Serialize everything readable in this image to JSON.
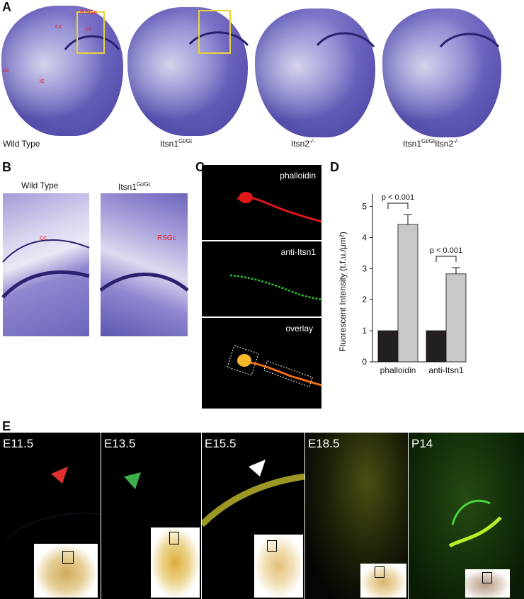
{
  "panels": {
    "a": "A",
    "b": "B",
    "c": "C",
    "d": "D",
    "e": "E"
  },
  "panelA": {
    "labels": [
      {
        "main": "Wild Type",
        "sup": "",
        "tail": ""
      },
      {
        "main": "Itsn1",
        "sup": "Gt/Gt",
        "tail": ""
      },
      {
        "main": "Itsn2",
        "sup": "-/-",
        "tail": ""
      },
      {
        "main": "Itsn1",
        "sup": "Gt/Gt",
        "tail": "Itsn2",
        "sup2": "-/-"
      }
    ],
    "annotations": {
      "rsgc": "RSGc",
      "cx": "cx",
      "cc": "cc",
      "ec": "ec",
      "ic": "ic"
    },
    "box_color": "#e8d23a"
  },
  "panelB": {
    "left_label": "Wild Type",
    "right_label_main": "Itsn1",
    "right_label_sup": "Gt/Gt",
    "cc": "cc",
    "rsgc": "RSGc"
  },
  "panelC": {
    "phalloidin": "phalloidin",
    "anti_itsn1": "anti-Itsn1",
    "overlay": "overlay"
  },
  "chart_data": {
    "type": "bar",
    "categories": [
      "phalloidin",
      "anti-Itsn1"
    ],
    "series": [
      {
        "values": [
          1,
          1
        ],
        "color": "#231f20"
      },
      {
        "values": [
          4.42,
          2.83
        ],
        "errors": [
          0.32,
          0.2
        ],
        "color": "#c8c8c8"
      }
    ],
    "ylabel": "Fluorescent Intensity (t.f.u./μm²)",
    "ylim": [
      0,
      5.4
    ],
    "yticks": [
      "0",
      "1",
      "2",
      "3",
      "4",
      "5"
    ],
    "annotations": [
      "p < 0.001",
      "p < 0.001"
    ],
    "grid": false
  },
  "panelE": {
    "stages": [
      "E11.5",
      "E13.5",
      "E15.5",
      "E18.5",
      "P14"
    ],
    "arrow_colors": [
      "#e03030",
      "#3cae48",
      "#ffffff"
    ]
  }
}
